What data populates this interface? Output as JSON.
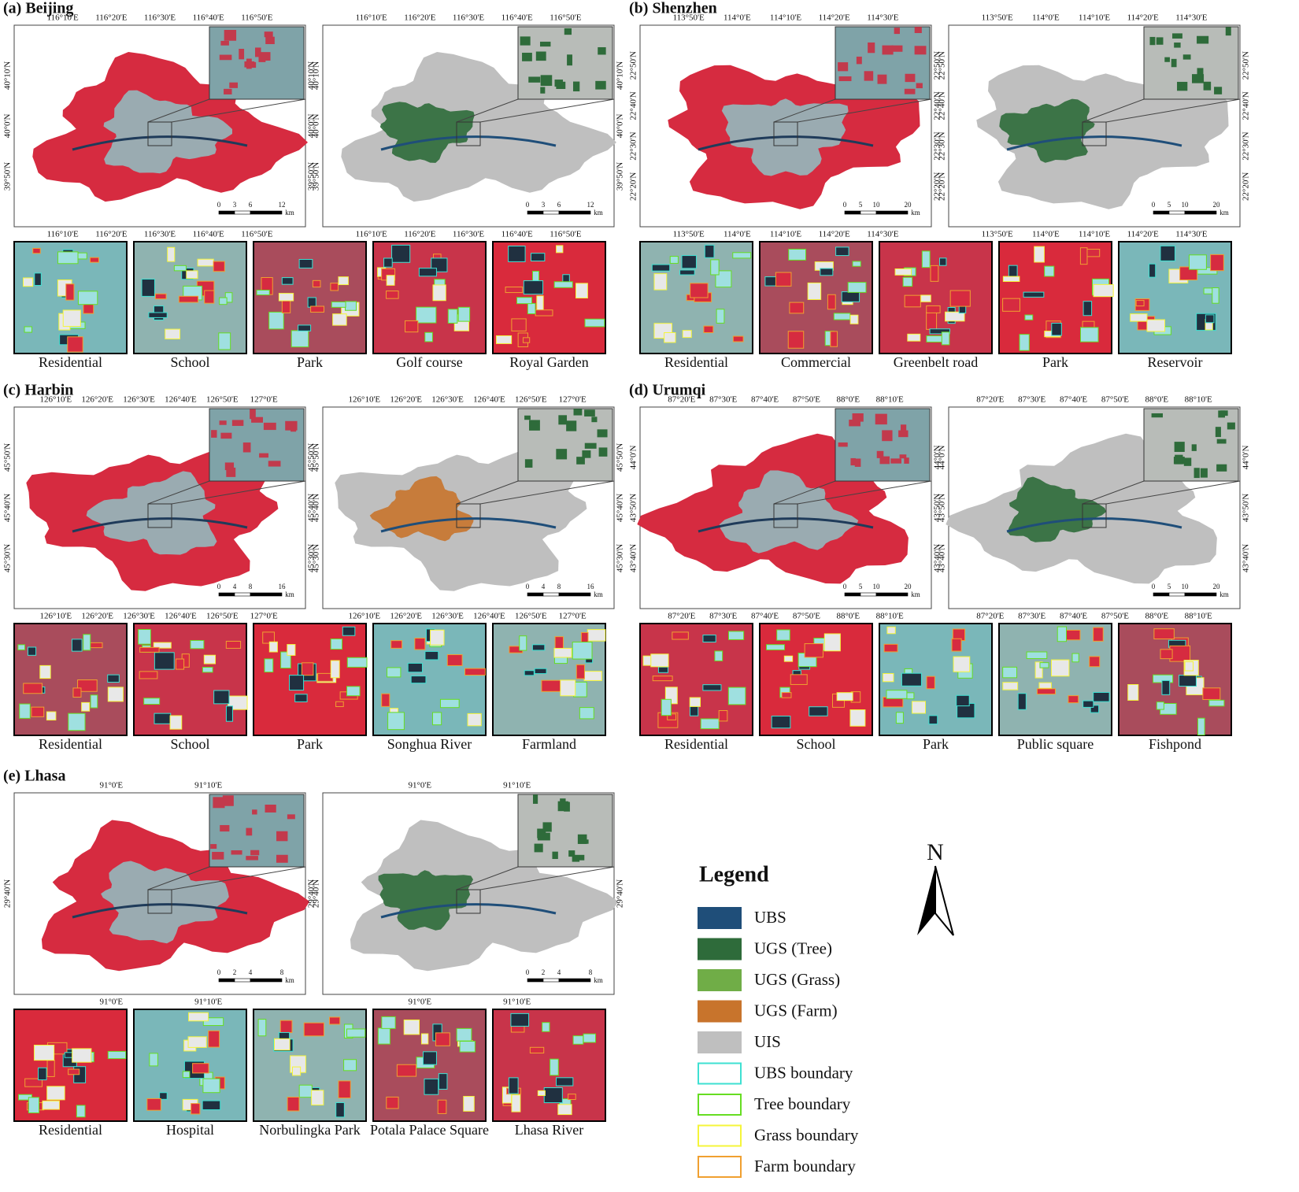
{
  "panels": [
    {
      "title": "(a) Beijing",
      "lon_ticks": [
        "116°10'E",
        "116°20'E",
        "116°30'E",
        "116°40'E",
        "116°50'E"
      ],
      "lat_ticks": [
        "40°10'N",
        "40°0'N",
        "39°50'N"
      ],
      "scale": [
        "0",
        "3",
        "6",
        "12",
        "km"
      ],
      "examples": [
        "Residential",
        "School",
        "Park",
        "Golf course",
        "Royal Garden"
      ]
    },
    {
      "title": "(b) Shenzhen",
      "lon_ticks": [
        "113°50'E",
        "114°0'E",
        "114°10'E",
        "114°20'E",
        "114°30'E"
      ],
      "lat_ticks": [
        "22°50'N",
        "22°40'N",
        "22°30'N",
        "22°20'N"
      ],
      "scale": [
        "0",
        "5",
        "10",
        "20",
        "km"
      ],
      "examples": [
        "Residential",
        "Commercial",
        "Greenbelt road",
        "Park",
        "Reservoir"
      ]
    },
    {
      "title": "(c) Harbin",
      "lon_ticks": [
        "126°10'E",
        "126°20'E",
        "126°30'E",
        "126°40'E",
        "126°50'E",
        "127°0'E"
      ],
      "lat_ticks": [
        "45°50'N",
        "45°40'N",
        "45°30'N"
      ],
      "scale": [
        "0",
        "4",
        "8",
        "16",
        "km"
      ],
      "examples": [
        "Residential",
        "School",
        "Park",
        "Songhua River",
        "Farmland"
      ]
    },
    {
      "title": "(d) Urumqi",
      "lon_ticks": [
        "87°20'E",
        "87°30'E",
        "87°40'E",
        "87°50'E",
        "88°0'E",
        "88°10'E"
      ],
      "lat_ticks": [
        "44°0'N",
        "43°50'N",
        "43°40'N"
      ],
      "scale": [
        "0",
        "5",
        "10",
        "20",
        "km"
      ],
      "examples": [
        "Residential",
        "School",
        "Park",
        "Public square",
        "Fishpond"
      ]
    },
    {
      "title": "(e) Lhasa",
      "lon_ticks": [
        "91°0'E",
        "91°10'E"
      ],
      "lat_ticks": [
        "29°40'N"
      ],
      "scale": [
        "0",
        "2",
        "4",
        "8",
        "km"
      ],
      "examples": [
        "Residential",
        "Hospital",
        "Norbulingka Park",
        "Potala Palace Square",
        "Lhasa River"
      ]
    }
  ],
  "legend": {
    "title": "Legend",
    "areas": [
      {
        "label": "UBS",
        "color": "#1f4e79"
      },
      {
        "label": "UGS (Tree)",
        "color": "#2e6b3a"
      },
      {
        "label": "UGS (Grass)",
        "color": "#70ad47"
      },
      {
        "label": "UGS (Farm)",
        "color": "#c8742c"
      },
      {
        "label": "UIS",
        "color": "#bfbfbf"
      }
    ],
    "boundaries": [
      {
        "label": "UBS boundary",
        "color": "#3ee0d2"
      },
      {
        "label": "Tree boundary",
        "color": "#66dd22"
      },
      {
        "label": "Grass boundary",
        "color": "#f5f53a"
      },
      {
        "label": "Farm boundary",
        "color": "#f0a030"
      }
    ]
  },
  "north": "N"
}
